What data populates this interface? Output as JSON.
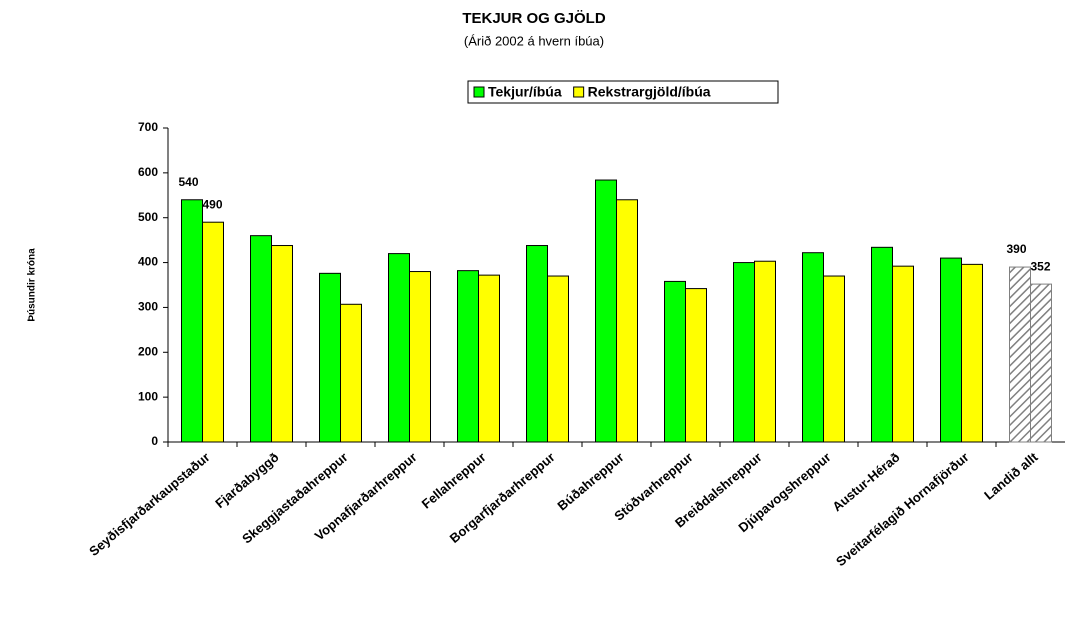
{
  "chart_data": {
    "type": "bar",
    "title": "TEKJUR OG GJÖLD",
    "subtitle": "(Árið 2002 á hvern íbúa)",
    "y_label": "Þúsundir króna",
    "categories": [
      "Seyðisfjarðarkaupstaður",
      "Fjarðabyggð",
      "Skeggjastaðahreppur",
      "Vopnafjarðarhreppur",
      "Fellahreppur",
      "Borgarfjarðarhreppur",
      "Búðahreppur",
      "Stöðvarhreppur",
      "Breiðdalshreppur",
      "Djúpavogshreppur",
      "Austur-Hérað",
      "Sveitarfélagið Hornafjörður",
      "Landið allt"
    ],
    "series": [
      {
        "name": "Tekjur/íbúa",
        "color": "#00ff00",
        "values": [
          540,
          460,
          376,
          420,
          382,
          438,
          584,
          358,
          400,
          422,
          434,
          410,
          390
        ],
        "value_labels": [
          "540",
          null,
          null,
          null,
          null,
          null,
          null,
          null,
          null,
          null,
          null,
          null,
          "390"
        ]
      },
      {
        "name": "Rekstrargjöld/íbúa",
        "color": "#ffff00",
        "values": [
          490,
          438,
          307,
          380,
          372,
          370,
          540,
          342,
          403,
          370,
          392,
          396,
          352
        ],
        "value_labels": [
          "490",
          null,
          null,
          null,
          null,
          null,
          null,
          null,
          null,
          null,
          null,
          null,
          "352"
        ]
      }
    ],
    "hatched_index": 12,
    "ylim": [
      0,
      700
    ],
    "yticks": [
      0,
      100,
      200,
      300,
      400,
      500,
      600,
      700
    ],
    "grid": false,
    "legend": "top"
  }
}
